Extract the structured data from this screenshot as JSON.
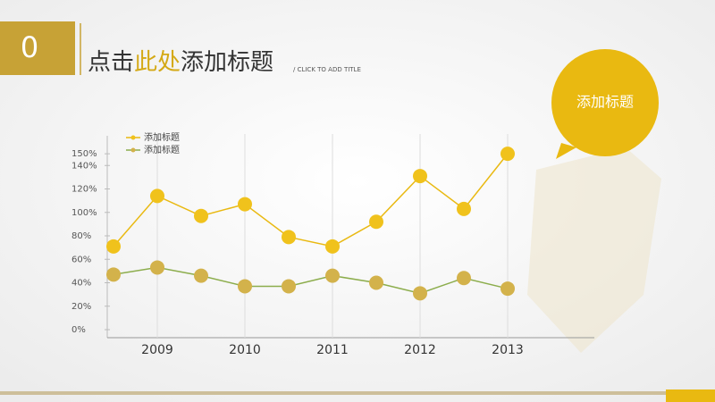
{
  "slide": {
    "number": "0",
    "title_parts": [
      "点击",
      "此处",
      "添加标题"
    ],
    "subtitle": "/ CLICK TO ADD TITLE",
    "callout": "添加标题"
  },
  "chart_data": {
    "type": "line",
    "categories": [
      null,
      "2009",
      null,
      "2010",
      null,
      "2011",
      null,
      "2012",
      null,
      "2013"
    ],
    "series": [
      {
        "name": "添加标题",
        "color": "#e9b911",
        "marker_color": "#f0c21c",
        "values": [
          71,
          114,
          97,
          107,
          79,
          71,
          92,
          131,
          103,
          150
        ]
      },
      {
        "name": "添加标题",
        "color": "#8cad4c",
        "marker_color": "#d3b24b",
        "values": [
          47,
          53,
          46,
          37,
          37,
          46,
          40,
          31,
          44,
          35
        ]
      }
    ],
    "ylim": [
      0,
      160
    ],
    "yticks": [
      {
        "value": 0,
        "label": "0%"
      },
      {
        "value": 20,
        "label": "20%"
      },
      {
        "value": 40,
        "label": "40%"
      },
      {
        "value": 60,
        "label": "60%"
      },
      {
        "value": 80,
        "label": "80%"
      },
      {
        "value": 100,
        "label": "100%"
      },
      {
        "value": 120,
        "label": "120%"
      },
      {
        "value": 140,
        "label": "140%"
      },
      {
        "value": 150,
        "label": "150%"
      }
    ],
    "legend": "upper left"
  }
}
